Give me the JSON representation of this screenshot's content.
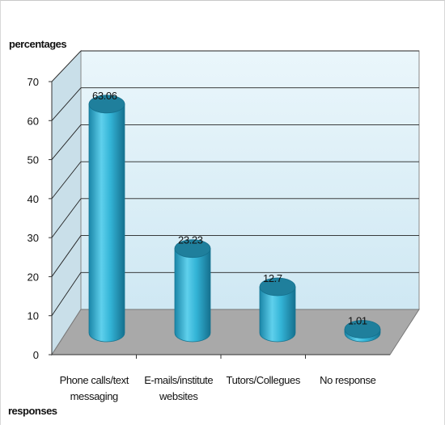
{
  "chart_data": {
    "type": "bar",
    "style": "3d-cylinder",
    "ylabel": "percentages",
    "xlabel": "responses",
    "ylim": [
      0,
      70
    ],
    "yticks": [
      0,
      10,
      20,
      30,
      40,
      50,
      60,
      70
    ],
    "grid": true,
    "categories": [
      [
        "Phone calls/text",
        "messaging"
      ],
      [
        "E-mails/institute",
        "websites"
      ],
      [
        "Tutors/Collegues"
      ],
      [
        "No response"
      ]
    ],
    "values": [
      63.06,
      23.23,
      12.7,
      1.01
    ],
    "data_labels": [
      "63.06",
      "23.23",
      "12.7",
      "1.01"
    ],
    "colors": {
      "bar": "#2aa7c9",
      "bar_top": "#1f7f9c",
      "back_wall": "#d9eef7",
      "floor": "#a8a8a8",
      "grid": "#222222"
    }
  }
}
